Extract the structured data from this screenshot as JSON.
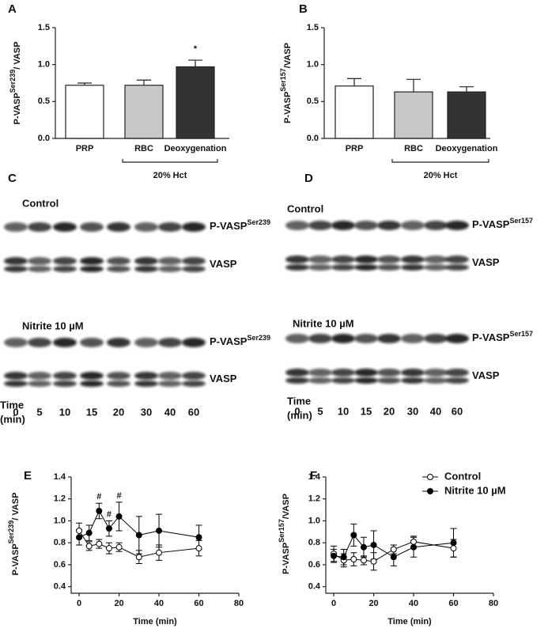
{
  "chart_data": [
    {
      "type": "bar",
      "panel": "A",
      "ylabel": [
        "P-VASP",
        "Ser239",
        "/ VASP"
      ],
      "categories": [
        "PRP",
        "RBC",
        "Deoxygenation"
      ],
      "values": [
        0.72,
        0.72,
        0.97
      ],
      "errors": [
        0.03,
        0.07,
        0.09
      ],
      "colors": [
        "#ffffff",
        "#c8c8c8",
        "#333333"
      ],
      "ylim": [
        0,
        1.5
      ],
      "yticks": [
        {
          "value": 0,
          "label": "0.0"
        },
        {
          "value": 0.5,
          "label": "0.5"
        },
        {
          "value": 1,
          "label": "1.0"
        },
        {
          "value": 1.5,
          "label": "1.5"
        }
      ],
      "annotations": [
        {
          "text": "*",
          "x": "Deoxygenation"
        }
      ],
      "bracket": {
        "label": "20% Hct",
        "from": "RBC",
        "to": "Deoxygenation"
      }
    },
    {
      "type": "bar",
      "panel": "B",
      "ylabel": [
        "P-VASP",
        "Ser157",
        "/VASP"
      ],
      "categories": [
        "PRP",
        "RBC",
        "Deoxygenation"
      ],
      "values": [
        0.71,
        0.63,
        0.63
      ],
      "errors": [
        0.1,
        0.17,
        0.07
      ],
      "colors": [
        "#ffffff",
        "#c8c8c8",
        "#333333"
      ],
      "ylim": [
        0,
        1.5
      ],
      "yticks": [
        {
          "value": 0,
          "label": "0.0"
        },
        {
          "value": 0.5,
          "label": "0.5"
        },
        {
          "value": 1,
          "label": "1.0"
        },
        {
          "value": 1.5,
          "label": "1.5"
        }
      ],
      "bracket": {
        "label": "20% Hct",
        "from": "RBC",
        "to": "Deoxygenation"
      }
    },
    {
      "type": "line",
      "panel": "E",
      "ylabel": [
        "P-VASP",
        "Ser239",
        "/ VASP"
      ],
      "xlabel": "Time (min)",
      "x": [
        0,
        5,
        10,
        15,
        20,
        30,
        40,
        60
      ],
      "series": [
        {
          "color": "#000000",
          "fill": "#ffffff",
          "values": [
            0.91,
            0.77,
            0.79,
            0.75,
            0.76,
            0.67,
            0.71,
            0.75
          ],
          "errors": [
            0.07,
            0.04,
            0.04,
            0.05,
            0.04,
            0.06,
            0.07,
            0.07
          ]
        },
        {
          "color": "#000000",
          "fill": "#000000",
          "values": [
            0.85,
            0.89,
            1.09,
            0.93,
            1.04,
            0.87,
            0.91,
            0.85
          ],
          "errors": [
            0.07,
            0.07,
            0.07,
            0.07,
            0.13,
            0.17,
            0.15,
            0.11
          ]
        }
      ],
      "xlim": [
        -4,
        80
      ],
      "xticks": [
        0,
        20,
        40,
        60,
        80
      ],
      "ylim": [
        0.34,
        1.4
      ],
      "yticks": [
        0.4,
        0.6,
        0.8,
        {
          "value": 1,
          "label": "1.0"
        },
        1.2,
        1.4
      ],
      "annotations": [
        {
          "text": "#",
          "x": 10
        },
        {
          "text": "#",
          "x": 15
        },
        {
          "text": "#",
          "x": 20
        }
      ]
    },
    {
      "type": "line",
      "panel": "F",
      "ylabel": [
        "P-VASP",
        "Ser157",
        "/VASP"
      ],
      "xlabel": "Time (min)",
      "x": [
        0,
        5,
        10,
        15,
        20,
        30,
        40,
        60
      ],
      "series": [
        {
          "name": "Control",
          "color": "#000000",
          "fill": "#ffffff",
          "values": [
            0.7,
            0.64,
            0.65,
            0.64,
            0.63,
            0.74,
            0.81,
            0.75
          ],
          "errors": [
            0.07,
            0.06,
            0.06,
            0.04,
            0.08,
            0.04,
            0.05,
            0.08
          ]
        },
        {
          "name": "Nitrite 10 µM",
          "color": "#000000",
          "fill": "#000000",
          "values": [
            0.68,
            0.67,
            0.87,
            0.76,
            0.78,
            0.67,
            0.76,
            0.8
          ],
          "errors": [
            0.06,
            0.07,
            0.1,
            0.09,
            0.13,
            0.08,
            0.09,
            0.13
          ]
        }
      ],
      "xlim": [
        -4,
        80
      ],
      "xticks": [
        0,
        20,
        40,
        60,
        80
      ],
      "ylim": [
        0.34,
        1.4
      ],
      "yticks": [
        0.4,
        0.6,
        0.8,
        {
          "value": 1,
          "label": "1.0"
        },
        1.2,
        1.4
      ],
      "legend": "upper right"
    }
  ],
  "blots": [
    {
      "panel": "C",
      "groups": [
        {
          "label": "Control",
          "rows": [
            [
              "P-VASP",
              "Ser239"
            ],
            [
              "VASP"
            ]
          ]
        },
        {
          "label": "Nitrite 10 µM",
          "rows": [
            [
              "P-VASP",
              "Ser239"
            ],
            [
              "VASP"
            ]
          ]
        }
      ],
      "time_label": [
        "Time",
        "(min)"
      ],
      "times": [
        0,
        5,
        10,
        15,
        20,
        30,
        40,
        60
      ]
    },
    {
      "panel": "D",
      "groups": [
        {
          "label": "Control",
          "rows": [
            [
              "P-VASP",
              "Ser157"
            ],
            [
              "VASP"
            ]
          ]
        },
        {
          "label": "Nitrite 10 µM",
          "rows": [
            [
              "P-VASP",
              "Ser157"
            ],
            [
              "VASP"
            ]
          ]
        }
      ],
      "time_label": [
        "Time",
        "(min)"
      ],
      "times": [
        0,
        5,
        10,
        15,
        20,
        30,
        40,
        60
      ]
    }
  ]
}
